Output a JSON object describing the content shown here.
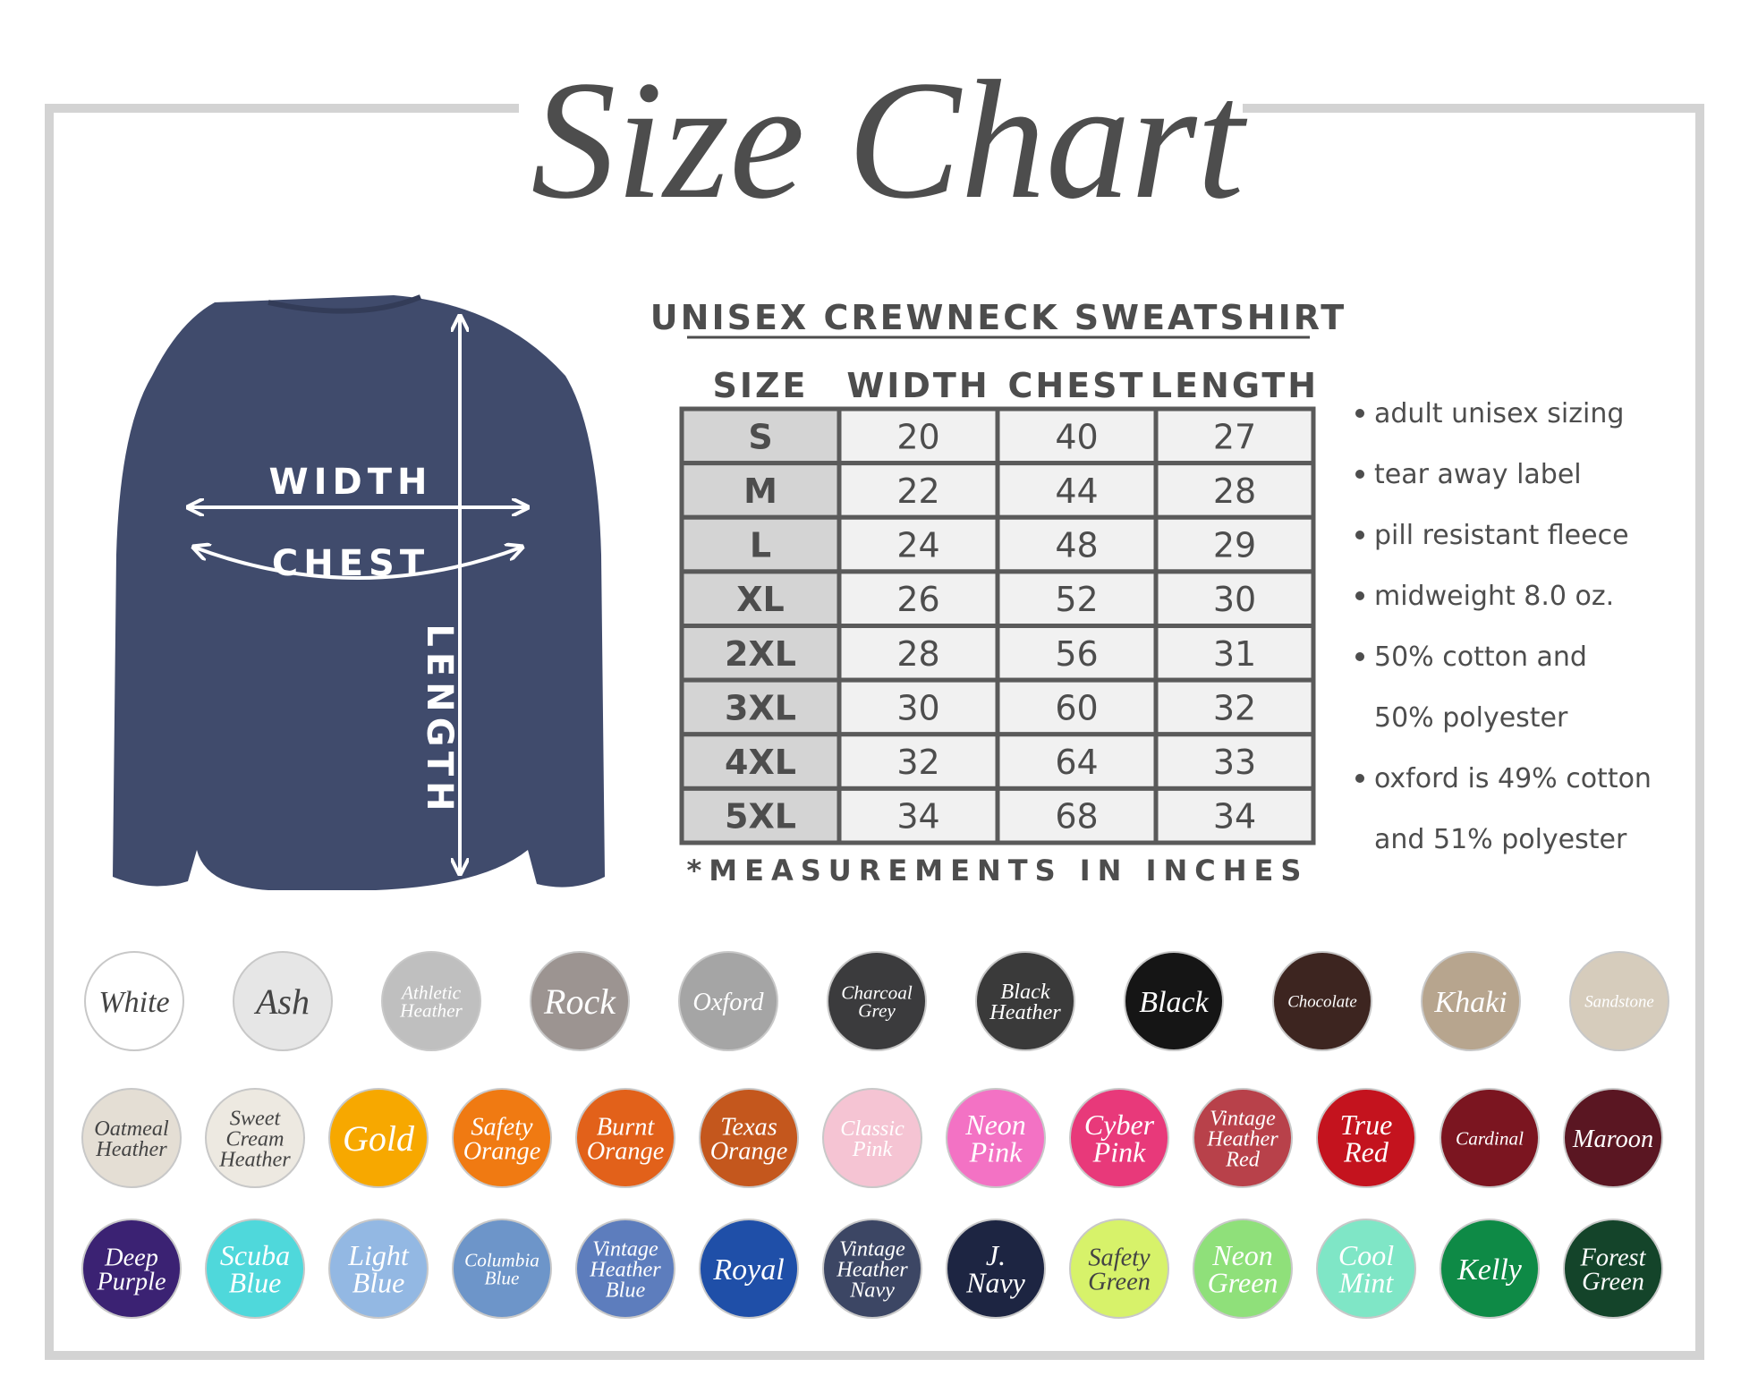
{
  "title": "Size Chart",
  "garment_labels": {
    "width": "WIDTH",
    "chest": "CHEST",
    "length": "LENGTH"
  },
  "table": {
    "title": "UNISEX CREWNECK SWEATSHIRT",
    "headers": [
      "SIZE",
      "WIDTH",
      "CHEST",
      "LENGTH"
    ],
    "rows": [
      [
        "S",
        20,
        40,
        27
      ],
      [
        "M",
        22,
        44,
        28
      ],
      [
        "L",
        24,
        48,
        29
      ],
      [
        "XL",
        26,
        52,
        30
      ],
      [
        "2XL",
        28,
        56,
        31
      ],
      [
        "3XL",
        30,
        60,
        32
      ],
      [
        "4XL",
        32,
        64,
        33
      ],
      [
        "5XL",
        34,
        68,
        34
      ]
    ],
    "footnote": "*MEASUREMENTS IN INCHES"
  },
  "features": [
    [
      "adult unisex sizing"
    ],
    [
      "tear away label"
    ],
    [
      "pill resistant fleece"
    ],
    [
      "midweight 8.0 oz."
    ],
    [
      "50% cotton and",
      "50% polyester"
    ],
    [
      "oxford is 49% cotton",
      "and 51% polyester"
    ]
  ],
  "colors": [
    [
      {
        "lines": [
          "White"
        ],
        "color": "#ffffff"
      },
      {
        "lines": [
          "Ash"
        ],
        "color": "#e6e6e6"
      },
      {
        "lines": [
          "Athletic",
          "Heather"
        ],
        "color": "#bfbfbf"
      },
      {
        "lines": [
          "Rock"
        ],
        "color": "#9c9491"
      },
      {
        "lines": [
          "Oxford"
        ],
        "color": "#a5a5a5"
      },
      {
        "lines": [
          "Charcoal",
          "Grey"
        ],
        "color": "#3b3b3d"
      },
      {
        "lines": [
          "Black",
          "Heather"
        ],
        "color": "#3a3a3a"
      },
      {
        "lines": [
          "Black"
        ],
        "color": "#151515"
      },
      {
        "lines": [
          "Chocolate"
        ],
        "color": "#3d2520"
      },
      {
        "lines": [
          "Khaki"
        ],
        "color": "#b7a58e"
      },
      {
        "lines": [
          "Sandstone"
        ],
        "color": "#d6ccbc"
      }
    ],
    [
      {
        "lines": [
          "Oatmeal",
          "Heather"
        ],
        "color": "#e4ded4"
      },
      {
        "lines": [
          "Sweet",
          "Cream",
          "Heather"
        ],
        "color": "#ede9e1"
      },
      {
        "lines": [
          "Gold"
        ],
        "color": "#f7a800"
      },
      {
        "lines": [
          "Safety",
          "Orange"
        ],
        "color": "#f07a12"
      },
      {
        "lines": [
          "Burnt",
          "Orange"
        ],
        "color": "#e2611a"
      },
      {
        "lines": [
          "Texas",
          "Orange"
        ],
        "color": "#c4571d"
      },
      {
        "lines": [
          "Classic",
          "Pink"
        ],
        "color": "#f5c4d3"
      },
      {
        "lines": [
          "Neon",
          "Pink"
        ],
        "color": "#f372c4"
      },
      {
        "lines": [
          "Cyber",
          "Pink"
        ],
        "color": "#e8397a"
      },
      {
        "lines": [
          "Vintage",
          "Heather",
          "Red"
        ],
        "color": "#b8414a"
      },
      {
        "lines": [
          "True",
          "Red"
        ],
        "color": "#c4131e"
      },
      {
        "lines": [
          "Cardinal"
        ],
        "color": "#7b1520"
      },
      {
        "lines": [
          "Maroon"
        ],
        "color": "#5a1622"
      }
    ],
    [
      {
        "lines": [
          "Deep",
          "Purple"
        ],
        "color": "#3b2273"
      },
      {
        "lines": [
          "Scuba",
          "Blue"
        ],
        "color": "#4fd8db"
      },
      {
        "lines": [
          "Light",
          "Blue"
        ],
        "color": "#93b8e3"
      },
      {
        "lines": [
          "Columbia",
          "Blue"
        ],
        "color": "#6d95c9"
      },
      {
        "lines": [
          "Vintage",
          "Heather",
          "Blue"
        ],
        "color": "#5d7dbd"
      },
      {
        "lines": [
          "Royal"
        ],
        "color": "#1f4fa8"
      },
      {
        "lines": [
          "Vintage",
          "Heather",
          "Navy"
        ],
        "color": "#3c4664"
      },
      {
        "lines": [
          "J.",
          "Navy"
        ],
        "color": "#1d2542"
      },
      {
        "lines": [
          "Safety",
          "Green"
        ],
        "color": "#d7f26a"
      },
      {
        "lines": [
          "Neon",
          "Green"
        ],
        "color": "#8fe07a"
      },
      {
        "lines": [
          "Cool",
          "Mint"
        ],
        "color": "#7fe6c6"
      },
      {
        "lines": [
          "Kelly"
        ],
        "color": "#0e8a46"
      },
      {
        "lines": [
          "Forest",
          "Green"
        ],
        "color": "#14442a"
      }
    ]
  ]
}
